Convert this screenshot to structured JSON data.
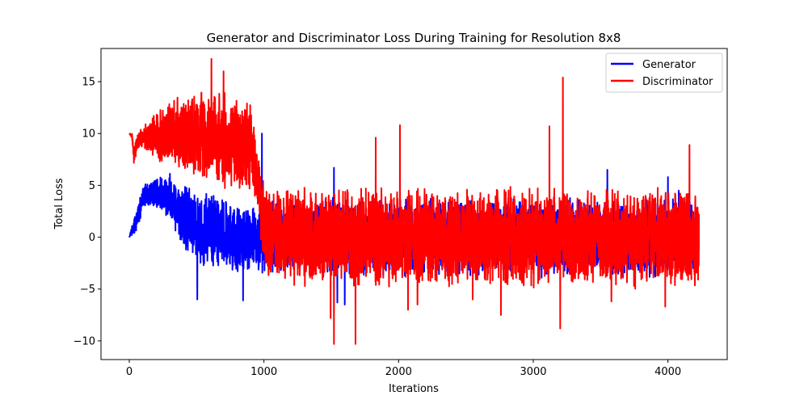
{
  "chart_data": {
    "type": "line",
    "title": "Generator and Discriminator Loss During Training for Resolution 8x8",
    "xlabel": "Iterations",
    "ylabel": "Total Loss",
    "xlim": [
      -210,
      4440
    ],
    "ylim": [
      -11.8,
      18.2
    ],
    "xticks": [
      0,
      1000,
      2000,
      3000,
      4000
    ],
    "yticks": [
      -10,
      -5,
      0,
      5,
      10,
      15
    ],
    "grid": false,
    "legend_position": "top-right",
    "total_points": 4230,
    "series": [
      {
        "name": "Generator",
        "color": "#0000ff",
        "envelope": [
          {
            "x": 0,
            "low": 0.0,
            "high": 0.0
          },
          {
            "x": 40,
            "low": 0.2,
            "high": 2.3
          },
          {
            "x": 80,
            "low": 1.5,
            "high": 4.0
          },
          {
            "x": 100,
            "low": 3.0,
            "high": 5.0
          },
          {
            "x": 200,
            "low": 2.5,
            "high": 6.0
          },
          {
            "x": 300,
            "low": 1.5,
            "high": 6.5
          },
          {
            "x": 400,
            "low": -1.0,
            "high": 5.5
          },
          {
            "x": 500,
            "low": -3.0,
            "high": 5.0
          },
          {
            "x": 600,
            "low": -3.5,
            "high": 4.5
          },
          {
            "x": 700,
            "low": -3.5,
            "high": 4.0
          },
          {
            "x": 800,
            "low": -4.0,
            "high": 3.5
          },
          {
            "x": 900,
            "low": -3.5,
            "high": 3.0
          },
          {
            "x": 1000,
            "low": -4.0,
            "high": 4.0
          },
          {
            "x": 1500,
            "low": -4.0,
            "high": 4.0
          },
          {
            "x": 2000,
            "low": -4.0,
            "high": 4.0
          },
          {
            "x": 2500,
            "low": -4.0,
            "high": 4.0
          },
          {
            "x": 3000,
            "low": -4.0,
            "high": 4.0
          },
          {
            "x": 3500,
            "low": -4.0,
            "high": 4.0
          },
          {
            "x": 4000,
            "low": -4.0,
            "high": 4.0
          },
          {
            "x": 4230,
            "low": -4.0,
            "high": 4.0
          }
        ],
        "spikes": [
          {
            "x": 505,
            "y": -6.0
          },
          {
            "x": 845,
            "y": -6.1
          },
          {
            "x": 985,
            "y": 10.0
          },
          {
            "x": 1520,
            "y": 6.7
          },
          {
            "x": 1545,
            "y": -6.3
          },
          {
            "x": 1600,
            "y": -6.5
          },
          {
            "x": 3550,
            "y": 6.5
          },
          {
            "x": 4000,
            "y": 5.8
          },
          {
            "x": 4080,
            "y": 4.5
          }
        ]
      },
      {
        "name": "Discriminator",
        "color": "#ff0000",
        "envelope": [
          {
            "x": 0,
            "low": 10.0,
            "high": 10.0
          },
          {
            "x": 20,
            "low": 9.5,
            "high": 10.0
          },
          {
            "x": 35,
            "low": 6.5,
            "high": 9.0
          },
          {
            "x": 60,
            "low": 8.5,
            "high": 10.0
          },
          {
            "x": 100,
            "low": 8.5,
            "high": 11.0
          },
          {
            "x": 200,
            "low": 7.5,
            "high": 12.0
          },
          {
            "x": 300,
            "low": 6.5,
            "high": 13.5
          },
          {
            "x": 400,
            "low": 5.5,
            "high": 14.0
          },
          {
            "x": 500,
            "low": 5.0,
            "high": 14.5
          },
          {
            "x": 600,
            "low": 4.5,
            "high": 15.0
          },
          {
            "x": 700,
            "low": 4.5,
            "high": 14.5
          },
          {
            "x": 800,
            "low": 4.5,
            "high": 14.0
          },
          {
            "x": 900,
            "low": 4.0,
            "high": 13.5
          },
          {
            "x": 960,
            "low": 2.5,
            "high": 8.0
          },
          {
            "x": 1000,
            "low": -4.5,
            "high": 5.0
          },
          {
            "x": 1500,
            "low": -5.0,
            "high": 5.0
          },
          {
            "x": 2000,
            "low": -5.0,
            "high": 5.0
          },
          {
            "x": 2500,
            "low": -5.0,
            "high": 5.0
          },
          {
            "x": 3000,
            "low": -5.0,
            "high": 5.0
          },
          {
            "x": 3500,
            "low": -5.0,
            "high": 5.0
          },
          {
            "x": 4000,
            "low": -5.0,
            "high": 5.0
          },
          {
            "x": 4230,
            "low": -5.0,
            "high": 5.0
          }
        ],
        "spikes": [
          {
            "x": 610,
            "y": 17.2
          },
          {
            "x": 700,
            "y": 16.0
          },
          {
            "x": 1495,
            "y": -7.8
          },
          {
            "x": 1520,
            "y": -10.3
          },
          {
            "x": 1680,
            "y": -10.3
          },
          {
            "x": 1830,
            "y": 9.6
          },
          {
            "x": 2010,
            "y": 10.8
          },
          {
            "x": 2070,
            "y": -7.0
          },
          {
            "x": 2140,
            "y": -6.5
          },
          {
            "x": 2550,
            "y": -6.0
          },
          {
            "x": 2760,
            "y": -7.5
          },
          {
            "x": 3120,
            "y": 10.7
          },
          {
            "x": 3200,
            "y": -8.8
          },
          {
            "x": 3220,
            "y": 15.4
          },
          {
            "x": 3580,
            "y": -6.2
          },
          {
            "x": 3980,
            "y": -6.7
          },
          {
            "x": 4160,
            "y": 8.9
          }
        ]
      }
    ]
  }
}
